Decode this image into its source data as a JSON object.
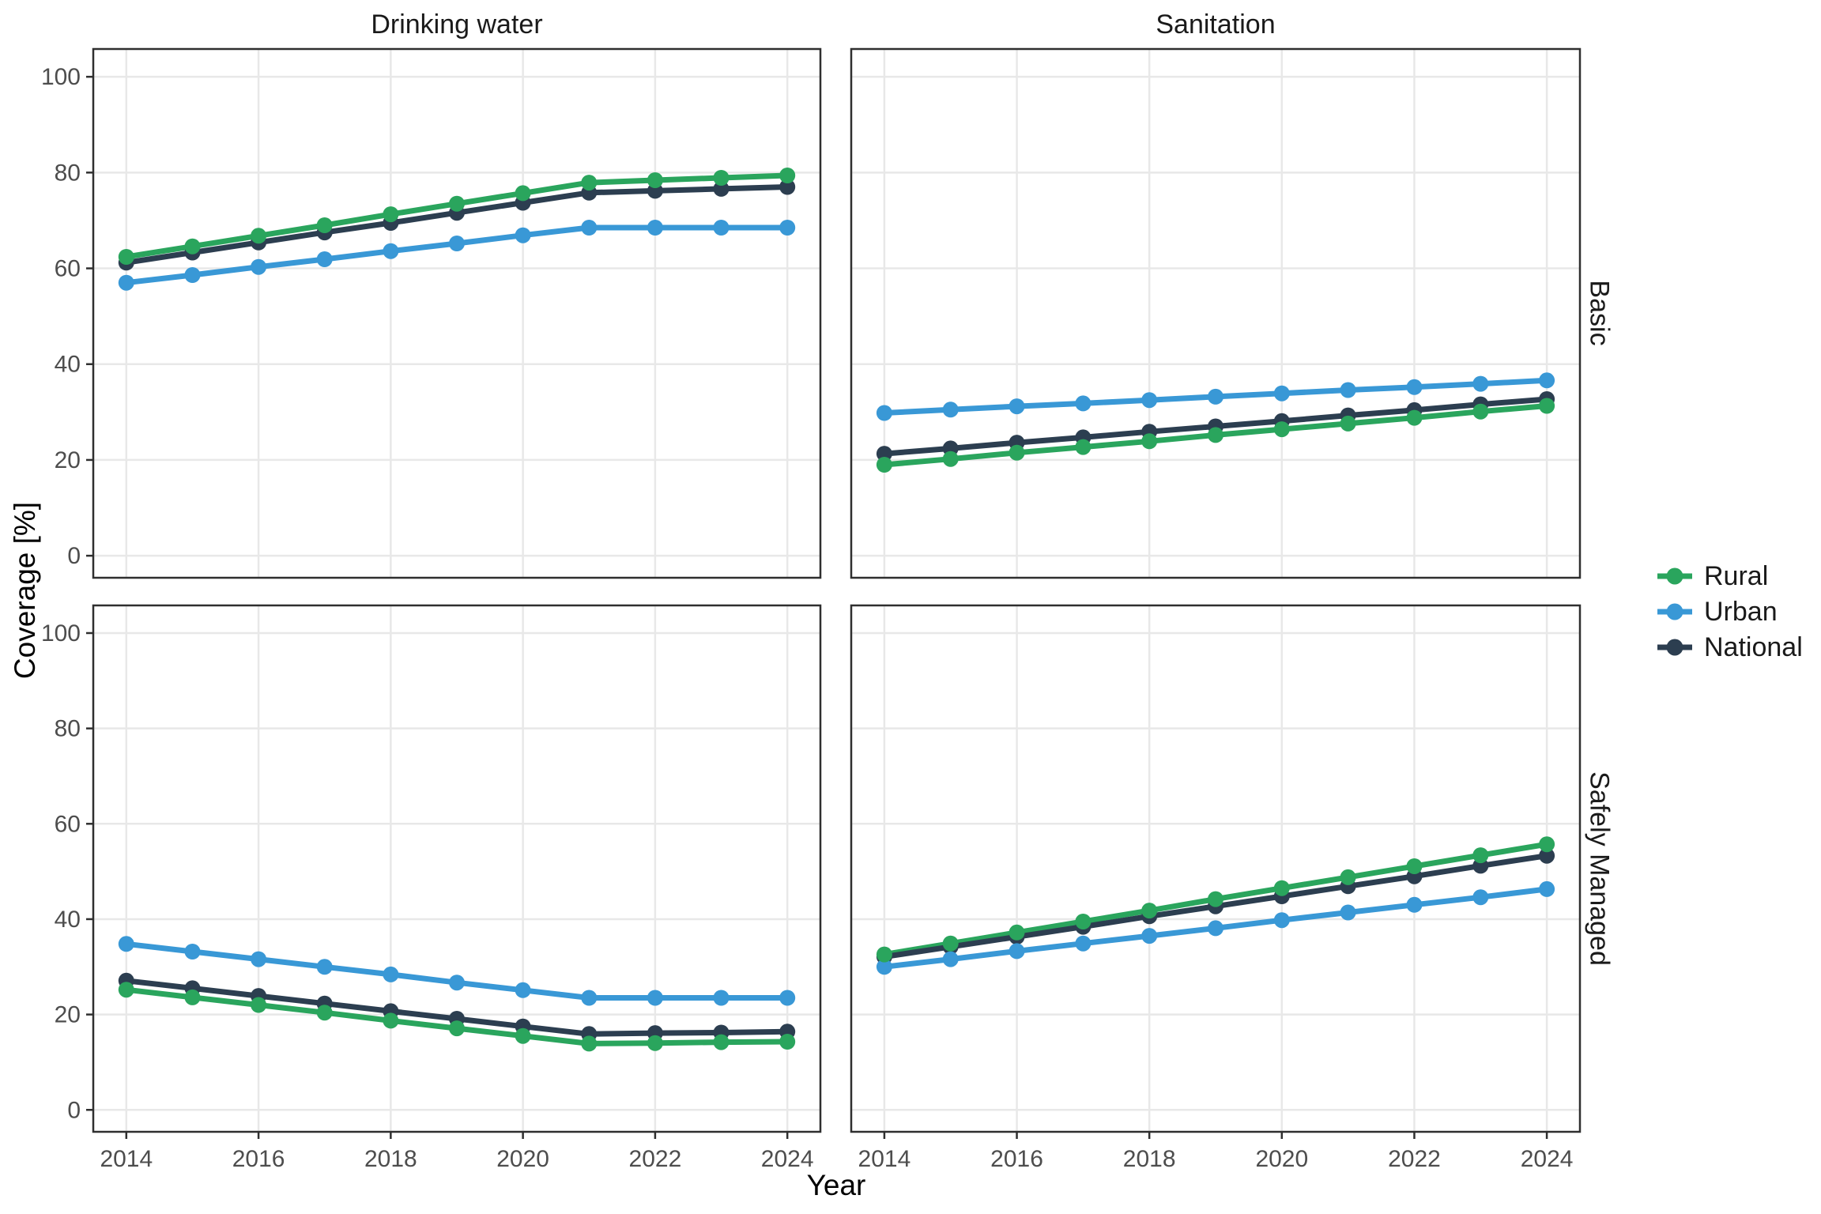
{
  "figure": {
    "title_cols": [
      "Drinking water",
      "Sanitation"
    ],
    "title_rows": [
      "Basic",
      "Safely Managed"
    ],
    "xlabel": "Year",
    "ylabel": "Coverage [%]",
    "colors": {
      "rural": "#2AA55D",
      "urban": "#3998D6",
      "national": "#2C3E50",
      "grid": "#E8E8E8",
      "panel_border": "#2F2F2F",
      "tick_label": "#4D4D4D",
      "title_text": "#1A1A1A",
      "background": "#FFFFFF"
    },
    "legend": {
      "position": "right",
      "items": [
        {
          "label": "Rural",
          "color": "#2AA55D"
        },
        {
          "label": "Urban",
          "color": "#3998D6"
        },
        {
          "label": "National",
          "color": "#2C3E50"
        }
      ]
    }
  },
  "chart_data": [
    {
      "type": "line",
      "facet_col": "Drinking water",
      "facet_row": "Basic",
      "col": 0,
      "row": 0,
      "x": [
        2014,
        2015,
        2016,
        2017,
        2018,
        2019,
        2020,
        2021,
        2022,
        2023,
        2024
      ],
      "series": [
        {
          "name": "Rural",
          "color": "#2AA55D",
          "values": [
            62.4,
            64.6,
            66.8,
            69.0,
            71.3,
            73.5,
            75.7,
            77.9,
            78.4,
            78.9,
            79.4
          ]
        },
        {
          "name": "Urban",
          "color": "#3998D6",
          "values": [
            57.0,
            58.6,
            60.3,
            61.9,
            63.6,
            65.2,
            66.9,
            68.5,
            68.5,
            68.5,
            68.5
          ]
        },
        {
          "name": "National",
          "color": "#2C3E50",
          "values": [
            61.2,
            63.3,
            65.4,
            67.5,
            69.5,
            71.6,
            73.7,
            75.8,
            76.2,
            76.6,
            77.0
          ]
        }
      ],
      "xlim": [
        2013.5,
        2024.5
      ],
      "ylim": [
        -4.6,
        105.8
      ],
      "xticks": [
        2014,
        2016,
        2018,
        2020,
        2022,
        2024
      ],
      "yticks": [
        0,
        20,
        40,
        60,
        80,
        100
      ],
      "grid": true
    },
    {
      "type": "line",
      "facet_col": "Sanitation",
      "facet_row": "Basic",
      "col": 1,
      "row": 0,
      "x": [
        2014,
        2015,
        2016,
        2017,
        2018,
        2019,
        2020,
        2021,
        2022,
        2023,
        2024
      ],
      "series": [
        {
          "name": "Rural",
          "color": "#2AA55D",
          "values": [
            19.0,
            20.2,
            21.5,
            22.7,
            23.9,
            25.2,
            26.4,
            27.6,
            28.8,
            30.1,
            31.3
          ]
        },
        {
          "name": "Urban",
          "color": "#3998D6",
          "values": [
            29.8,
            30.5,
            31.2,
            31.8,
            32.5,
            33.2,
            33.9,
            34.6,
            35.2,
            35.9,
            36.6
          ]
        },
        {
          "name": "National",
          "color": "#2C3E50",
          "values": [
            21.3,
            22.4,
            23.6,
            24.7,
            25.9,
            27.0,
            28.1,
            29.3,
            30.4,
            31.6,
            32.7
          ]
        }
      ],
      "xlim": [
        2013.5,
        2024.5
      ],
      "ylim": [
        -4.6,
        105.8
      ],
      "xticks": [
        2014,
        2016,
        2018,
        2020,
        2022,
        2024
      ],
      "yticks": [
        0,
        20,
        40,
        60,
        80,
        100
      ],
      "grid": true
    },
    {
      "type": "line",
      "facet_col": "Drinking water",
      "facet_row": "Safely Managed",
      "col": 0,
      "row": 1,
      "x": [
        2014,
        2015,
        2016,
        2017,
        2018,
        2019,
        2020,
        2021,
        2022,
        2023,
        2024
      ],
      "series": [
        {
          "name": "Rural",
          "color": "#2AA55D",
          "values": [
            25.2,
            23.6,
            22.0,
            20.4,
            18.7,
            17.1,
            15.5,
            13.9,
            14.0,
            14.2,
            14.3
          ]
        },
        {
          "name": "Urban",
          "color": "#3998D6",
          "values": [
            34.8,
            33.2,
            31.6,
            30.0,
            28.4,
            26.7,
            25.1,
            23.5,
            23.5,
            23.5,
            23.5
          ]
        },
        {
          "name": "National",
          "color": "#2C3E50",
          "values": [
            27.1,
            25.5,
            23.9,
            22.3,
            20.7,
            19.1,
            17.5,
            15.9,
            16.1,
            16.2,
            16.4
          ]
        }
      ],
      "xlim": [
        2013.5,
        2024.5
      ],
      "ylim": [
        -4.6,
        105.8
      ],
      "xticks": [
        2014,
        2016,
        2018,
        2020,
        2022,
        2024
      ],
      "yticks": [
        0,
        20,
        40,
        60,
        80,
        100
      ],
      "grid": true
    },
    {
      "type": "line",
      "facet_col": "Sanitation",
      "facet_row": "Safely Managed",
      "col": 1,
      "row": 1,
      "x": [
        2014,
        2015,
        2016,
        2017,
        2018,
        2019,
        2020,
        2021,
        2022,
        2023,
        2024
      ],
      "series": [
        {
          "name": "Rural",
          "color": "#2AA55D",
          "values": [
            32.6,
            34.9,
            37.2,
            39.5,
            41.8,
            44.2,
            46.5,
            48.8,
            51.1,
            53.4,
            55.7
          ]
        },
        {
          "name": "Urban",
          "color": "#3998D6",
          "values": [
            30.0,
            31.6,
            33.3,
            34.9,
            36.5,
            38.1,
            39.8,
            41.4,
            43.0,
            44.6,
            46.3
          ]
        },
        {
          "name": "National",
          "color": "#2C3E50",
          "values": [
            32.1,
            34.2,
            36.3,
            38.4,
            40.6,
            42.7,
            44.8,
            46.9,
            49.0,
            51.2,
            53.3
          ]
        }
      ],
      "xlim": [
        2013.5,
        2024.5
      ],
      "ylim": [
        -4.6,
        105.8
      ],
      "xticks": [
        2014,
        2016,
        2018,
        2020,
        2022,
        2024
      ],
      "yticks": [
        0,
        20,
        40,
        60,
        80,
        100
      ],
      "grid": true
    }
  ]
}
